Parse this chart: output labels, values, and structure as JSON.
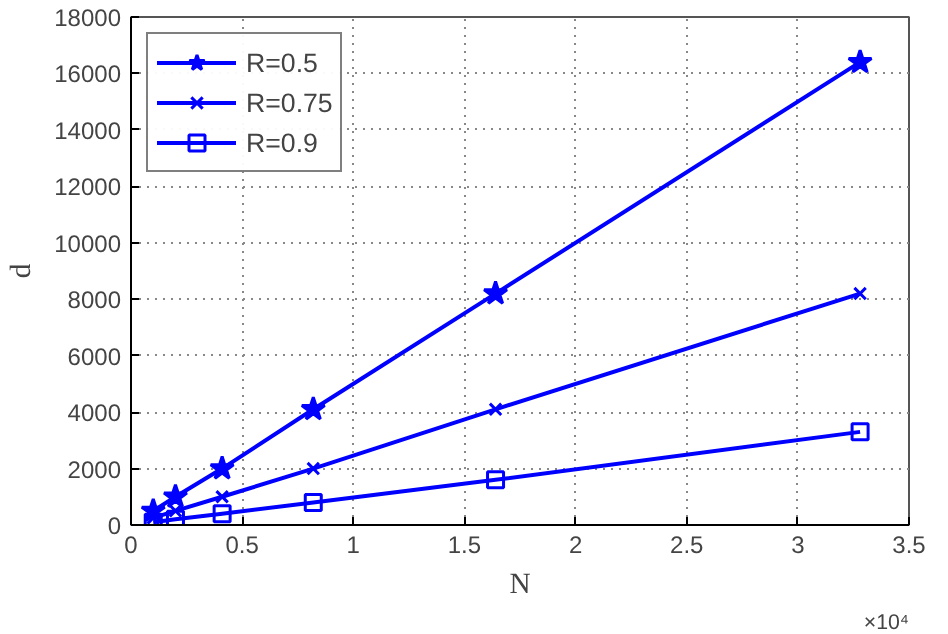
{
  "chart_data": {
    "type": "line",
    "xlabel": "N",
    "ylabel": "d",
    "annotations": [
      "×10⁴"
    ],
    "xlim": [
      0,
      3.5
    ],
    "xticks": [
      0,
      0.5,
      1,
      1.5,
      2,
      2.5,
      3,
      3.5
    ],
    "ylim": [
      0,
      18000
    ],
    "yticks": [
      0,
      2000,
      4000,
      6000,
      8000,
      10000,
      12000,
      14000,
      16000,
      18000
    ],
    "grid": true,
    "legend": "top left",
    "line_style": "solid",
    "series": [
      {
        "name": "R=0.5",
        "color": "#0000ff",
        "marker": "star",
        "x": [
          0.1,
          0.2,
          0.41,
          0.82,
          1.64,
          3.28
        ],
        "values": [
          500,
          1000,
          2000,
          4100,
          8200,
          16400
        ]
      },
      {
        "name": "R=0.75",
        "color": "#0000ff",
        "marker": "cross",
        "x": [
          0.1,
          0.2,
          0.41,
          0.82,
          1.64,
          3.28
        ],
        "values": [
          250,
          500,
          1000,
          2000,
          4100,
          8200
        ]
      },
      {
        "name": "R=0.9",
        "color": "#0000ff",
        "marker": "square",
        "x": [
          0.1,
          0.2,
          0.41,
          0.82,
          1.64,
          3.28
        ],
        "values": [
          100,
          200,
          400,
          800,
          1600,
          3300
        ]
      }
    ]
  }
}
